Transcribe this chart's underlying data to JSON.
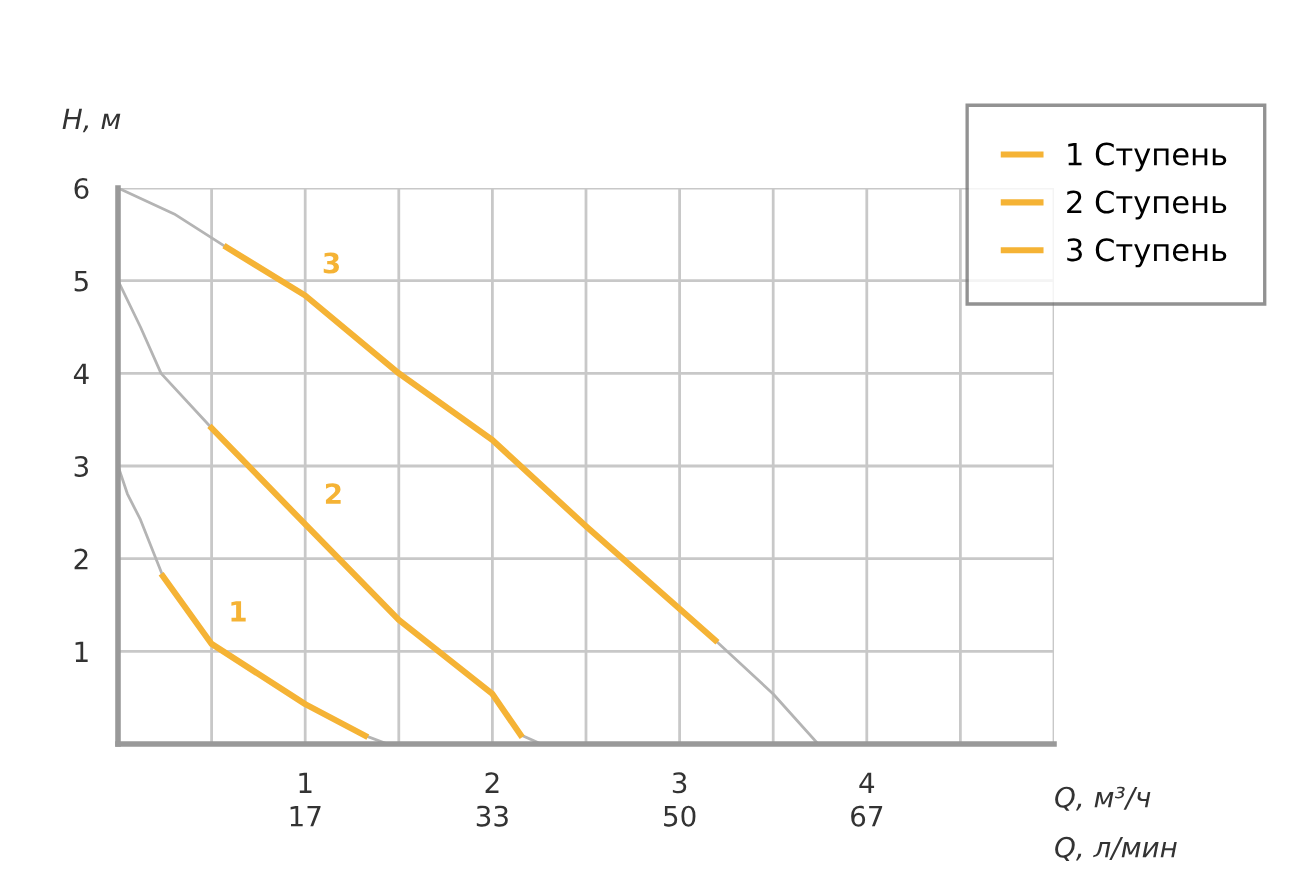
{
  "chart_data": {
    "type": "line",
    "ylabel": "H, м",
    "xlabel": "Q, м³/ч",
    "x2label": "Q, л/мин",
    "xlim": [
      0,
      5
    ],
    "ylim": [
      0,
      6
    ],
    "xticks": [
      {
        "value": 0.5,
        "label": null
      },
      1,
      {
        "value": 1.5,
        "label": null
      },
      2,
      {
        "value": 2.5,
        "label": null
      },
      3,
      {
        "value": 3.5,
        "label": null
      },
      4,
      {
        "value": 4.5,
        "label": null
      },
      {
        "value": 5,
        "label": null
      }
    ],
    "yticks": [
      1,
      2,
      3,
      4,
      5,
      6
    ],
    "x2lim": [
      0,
      83.33
    ],
    "x2ticks": [
      {
        "value": 16.67,
        "label": "17"
      },
      {
        "value": 33.33,
        "label": "33"
      },
      {
        "value": 50,
        "label": "50"
      },
      {
        "value": 66.67,
        "label": "67"
      }
    ],
    "grid": true,
    "legend": "top right",
    "marker": "none",
    "line_style": "solid",
    "series": [
      {
        "color": "#b4b4b4",
        "x": [
          0,
          0.3,
          0.58,
          1.0,
          1.5,
          2.0,
          2.5,
          3.19,
          3.5,
          3.74
        ],
        "values": [
          6,
          5.72,
          5.36,
          null,
          null,
          null,
          null,
          1.12,
          0.54,
          0
        ]
      },
      {
        "color": "#b4b4b4",
        "x": [
          0,
          0.12,
          0.23,
          0.5,
          1.01,
          1.5,
          2.0,
          2.15,
          2.26
        ],
        "values": [
          5,
          4.5,
          4.0,
          3.41,
          null,
          null,
          null,
          0.1,
          0
        ]
      },
      {
        "color": "#b4b4b4",
        "x": [
          0,
          0.05,
          0.12,
          0.24,
          0.5,
          1.0,
          1.32,
          1.44
        ],
        "values": [
          3,
          2.7,
          2.42,
          1.81,
          null,
          null,
          0.09,
          0
        ]
      },
      {
        "name": "1 Ступень",
        "color": "#f5b335",
        "x": [
          0.24,
          0.5,
          1.0,
          1.32
        ],
        "values": [
          1.81,
          1.08,
          0.43,
          0.09
        ]
      },
      {
        "name": "2 Ступень",
        "color": "#f5b335",
        "x": [
          0.5,
          1.01,
          1.5,
          2.0,
          2.15
        ],
        "values": [
          3.41,
          2.35,
          1.34,
          0.54,
          0.1
        ]
      },
      {
        "name": "3 Ступень",
        "color": "#f5b335",
        "x": [
          0.58,
          1.0,
          1.5,
          2.0,
          2.5,
          3.19
        ],
        "values": [
          5.36,
          4.84,
          4.0,
          3.28,
          2.35,
          1.12
        ]
      }
    ],
    "annotations": [
      "1",
      "2",
      "3"
    ]
  }
}
